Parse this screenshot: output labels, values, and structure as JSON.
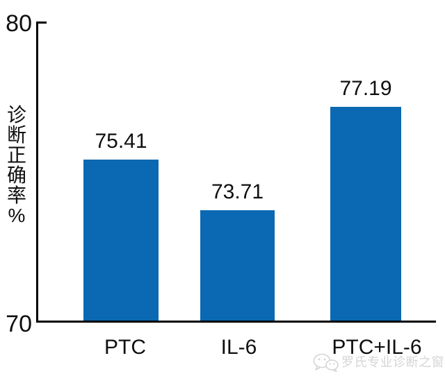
{
  "chart_data": {
    "type": "bar",
    "title": "",
    "categories": [
      "PTC",
      "IL-6",
      "PTC+IL-6"
    ],
    "values": [
      75.41,
      73.71,
      77.19
    ],
    "value_labels": [
      "75.41",
      "73.71",
      "77.19"
    ],
    "xlabel": "",
    "ylabel": "诊断正确率%",
    "ylim": [
      70,
      80
    ],
    "yticks": [
      70,
      80
    ],
    "ytick_labels": [
      "70",
      "80"
    ],
    "grid": false,
    "legend_position": "none",
    "bar_color": "#0a69b2",
    "axis_color": "#000000"
  },
  "watermark": {
    "icon": "wechat-icon",
    "text": "罗氏专业诊断之窗",
    "color": "#d5d5d5"
  }
}
